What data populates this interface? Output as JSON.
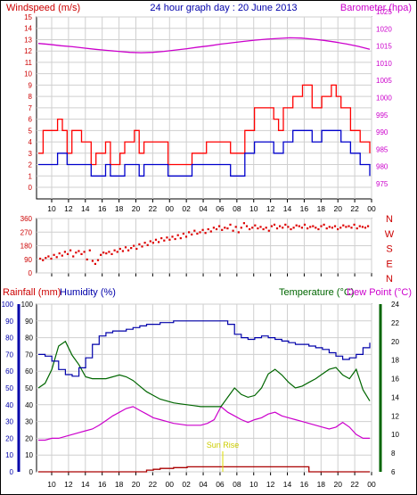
{
  "title": "24 hour graph day : 20 June 2013",
  "hour_labels": [
    "10",
    "12",
    "14",
    "16",
    "18",
    "20",
    "22",
    "00",
    "02",
    "04",
    "06",
    "08",
    "10",
    "12",
    "14",
    "16",
    "18",
    "20",
    "22",
    "00"
  ],
  "colors": {
    "wind": "#cc0000",
    "gust": "#ff0000",
    "windavg": "#0000cc",
    "baro": "#cc00cc",
    "dir": "#dd0000",
    "rain": "#aa0000",
    "humidity": "#0000aa",
    "temp": "#006600",
    "dew": "#cc00cc",
    "sunrise": "#dddd00",
    "grid": "#cfcfcf"
  },
  "chart_data": [
    {
      "type": "line",
      "ylabel_left": "Windspeed (m/s)",
      "ylabel_right": "Barometer (hpa)",
      "left_ticks": [
        "15",
        "14",
        "13",
        "12",
        "11",
        "10",
        "9",
        "8",
        "7",
        "6",
        "5",
        "4",
        "3",
        "2",
        "1",
        "0"
      ],
      "right_ticks": [
        "1025",
        "1020",
        "1015",
        "1010",
        "1005",
        "1000",
        "995",
        "990",
        "985",
        "980",
        "975"
      ],
      "ylim_left": [
        0,
        15.5
      ],
      "ylim_right": [
        970,
        1025
      ],
      "grid": true,
      "series": [
        {
          "name": "Wind gust",
          "axis": "left",
          "sampled": true,
          "values": [
            3,
            5,
            5,
            5,
            6,
            5,
            3,
            5,
            5,
            4,
            4,
            2,
            3,
            3,
            4,
            2,
            2,
            3,
            4,
            4,
            5,
            3,
            4,
            4,
            4,
            4,
            4,
            2,
            2,
            2,
            2,
            2,
            3,
            3,
            3,
            4,
            4,
            4,
            4,
            4,
            3,
            3,
            3,
            5,
            5,
            7,
            7,
            7,
            7,
            6,
            5,
            7,
            7,
            8,
            8,
            9,
            9,
            7,
            7,
            8,
            8,
            9,
            8,
            7,
            7,
            5,
            5,
            4,
            4,
            3
          ]
        },
        {
          "name": "Wind average",
          "axis": "left",
          "sampled": true,
          "values": [
            2,
            2,
            2,
            2,
            3,
            3,
            2,
            2,
            2,
            2,
            2,
            1,
            1,
            1,
            2,
            1,
            1,
            1,
            2,
            2,
            2,
            1,
            2,
            2,
            2,
            2,
            2,
            1,
            1,
            1,
            1,
            1,
            2,
            2,
            2,
            2,
            2,
            2,
            2,
            2,
            1,
            1,
            1,
            3,
            3,
            4,
            4,
            4,
            4,
            3,
            3,
            4,
            4,
            5,
            5,
            5,
            5,
            4,
            4,
            5,
            5,
            5,
            5,
            4,
            4,
            3,
            3,
            2,
            2,
            1
          ]
        },
        {
          "name": "Barometer",
          "axis": "right",
          "sampled": true,
          "values": [
            1017,
            1016.7,
            1016.3,
            1016,
            1015.6,
            1015.2,
            1014.9,
            1014.6,
            1014.3,
            1014.2,
            1014.3,
            1014.6,
            1015,
            1015.4,
            1015.9,
            1016.3,
            1016.8,
            1017.2,
            1017.6,
            1018,
            1018.3,
            1018.5,
            1018.7,
            1018.6,
            1018.3,
            1017.9,
            1017.4,
            1016.8,
            1016.1,
            1015.2
          ]
        }
      ]
    },
    {
      "type": "scatter",
      "ylabel_left_ticks": [
        "360",
        "270",
        "180",
        "90",
        "0"
      ],
      "ylabel_right_ticks": [
        "N",
        "W",
        "S",
        "E",
        "N"
      ],
      "ylim": [
        0,
        360
      ],
      "grid": true,
      "series": [
        {
          "name": "Wind direction",
          "sampled": true,
          "x": [
            0,
            0.5,
            1,
            1.5,
            2,
            2.5,
            3,
            3.5,
            4,
            4.5,
            5,
            5.5,
            6,
            6.5,
            7,
            7.5,
            8,
            8.5,
            9,
            9.5,
            10,
            10.5,
            11,
            11.5,
            12,
            12.5,
            13,
            13.5,
            14,
            14.5,
            15,
            15.5,
            16,
            16.5,
            17,
            17.5,
            18,
            18.5,
            19,
            19.5,
            20,
            20.5,
            21,
            21.5,
            22,
            22.5,
            23,
            23.5,
            24,
            24.5,
            25,
            25.5,
            26,
            26.5,
            27,
            27.5,
            28,
            28.5,
            29,
            29.5,
            30,
            30.5,
            31,
            31.5,
            32,
            32.5,
            33,
            33.5,
            34,
            34.5,
            35,
            35.5,
            36,
            36.5,
            37,
            37.5,
            38,
            38.5,
            39,
            39.5,
            40,
            40.5,
            41,
            41.5,
            42,
            42.5,
            43,
            43.5,
            44,
            44.5,
            45,
            45.5,
            46,
            46.5,
            47,
            47.5,
            48,
            48.5,
            49,
            49.5,
            50,
            50.5,
            51,
            51.5,
            52,
            52.5,
            53,
            53.5,
            54,
            54.5,
            55,
            55.5,
            56,
            56.5,
            57,
            57.5,
            58,
            58.5,
            59,
            59.5
          ],
          "y": [
            95,
            85,
            100,
            110,
            95,
            120,
            105,
            130,
            115,
            140,
            125,
            150,
            110,
            135,
            145,
            125,
            140,
            90,
            150,
            80,
            60,
            85,
            120,
            135,
            130,
            140,
            125,
            150,
            140,
            160,
            145,
            170,
            150,
            165,
            180,
            160,
            190,
            175,
            200,
            185,
            210,
            200,
            220,
            205,
            230,
            215,
            235,
            220,
            240,
            225,
            250,
            230,
            260,
            240,
            270,
            255,
            280,
            260,
            270,
            285,
            265,
            290,
            275,
            300,
            290,
            310,
            285,
            300,
            295,
            320,
            280,
            305,
            270,
            300,
            330,
            310,
            290,
            300,
            315,
            295,
            305,
            290,
            300,
            280,
            310,
            320,
            295,
            310,
            300,
            320,
            305,
            290,
            300,
            315,
            310,
            300,
            320,
            295,
            305,
            310,
            300,
            290,
            310,
            320,
            295,
            305,
            300,
            310,
            290,
            300,
            315,
            305,
            310,
            300,
            320,
            295,
            310,
            305,
            300,
            310
          ]
        }
      ]
    },
    {
      "type": "line",
      "ylabel_left1": "Rainfall (mm)",
      "ylabel_left2": "Humidity (%)",
      "ylabel_right1": "Temperature (°C)",
      "ylabel_right2": "Dew Point (°C)",
      "rain_ticks": [
        "100",
        "90",
        "80",
        "70",
        "60",
        "50",
        "40",
        "30",
        "20",
        "10",
        "0"
      ],
      "humidity_ticks": [
        "100",
        "90",
        "80",
        "70",
        "60",
        "50",
        "40",
        "30",
        "20",
        "10",
        "0"
      ],
      "temp_ticks": [
        "24",
        "22",
        "20",
        "18",
        "16",
        "14",
        "12",
        "10",
        "8",
        "6"
      ],
      "ylim_humidity": [
        0,
        100
      ],
      "ylim_temp": [
        6,
        24
      ],
      "annotation": "Sun Rise",
      "grid": true,
      "series": [
        {
          "name": "Humidity",
          "axis": "humidity",
          "sampled": true,
          "values": [
            70,
            69,
            66,
            61,
            58,
            57,
            62,
            68,
            76,
            81,
            83,
            84,
            84,
            85,
            86,
            87,
            88,
            88,
            89,
            89,
            90,
            90,
            90,
            90,
            90,
            90,
            90,
            90,
            88,
            82,
            80,
            79,
            80,
            81,
            80,
            79,
            78,
            77,
            76,
            76,
            75,
            74,
            73,
            71,
            69,
            67,
            68,
            70,
            74,
            77
          ]
        },
        {
          "name": "Temperature",
          "axis": "temp",
          "sampled": true,
          "values": [
            15,
            15.5,
            17,
            19.5,
            20,
            18.5,
            17.5,
            16.2,
            16,
            16,
            16,
            16.2,
            16.4,
            16.2,
            15.8,
            15.2,
            14.6,
            14.2,
            13.8,
            13.6,
            13.4,
            13.3,
            13.2,
            13.1,
            13,
            13,
            13,
            13,
            14,
            15,
            14.3,
            14,
            14.2,
            15,
            16.5,
            17,
            16.4,
            15.6,
            15,
            15.2,
            15.6,
            16,
            16.5,
            17,
            17.2,
            16.4,
            16,
            17,
            14.8,
            13.6
          ]
        },
        {
          "name": "Dew Point",
          "axis": "temp",
          "sampled": true,
          "values": [
            9.4,
            9.4,
            9.6,
            9.6,
            9.8,
            10,
            10.2,
            10.4,
            10.6,
            11,
            11.5,
            12,
            12.4,
            12.8,
            13,
            12.6,
            12.2,
            11.8,
            11.6,
            11.4,
            11.2,
            11.1,
            11,
            11,
            11,
            11.2,
            11.6,
            13,
            12.4,
            12,
            11.6,
            11.3,
            11.6,
            11.8,
            12.2,
            12.4,
            12,
            11.8,
            11.6,
            11.4,
            11.2,
            11,
            10.8,
            10.6,
            10.8,
            11.3,
            10.8,
            10,
            9.6,
            9.6
          ]
        },
        {
          "name": "Rainfall",
          "axis": "rain",
          "sampled": true,
          "values": [
            0,
            0,
            0,
            0,
            0,
            0,
            0,
            0,
            0,
            0,
            0,
            0,
            0,
            0,
            0,
            0,
            1,
            1.5,
            2,
            2,
            2.5,
            2.5,
            3,
            3,
            3,
            3,
            3,
            3,
            3,
            3,
            3,
            3,
            3,
            3,
            3,
            3,
            3,
            3,
            3,
            3,
            0,
            0,
            0,
            0,
            0,
            0,
            0,
            0,
            0,
            0
          ]
        }
      ]
    }
  ]
}
